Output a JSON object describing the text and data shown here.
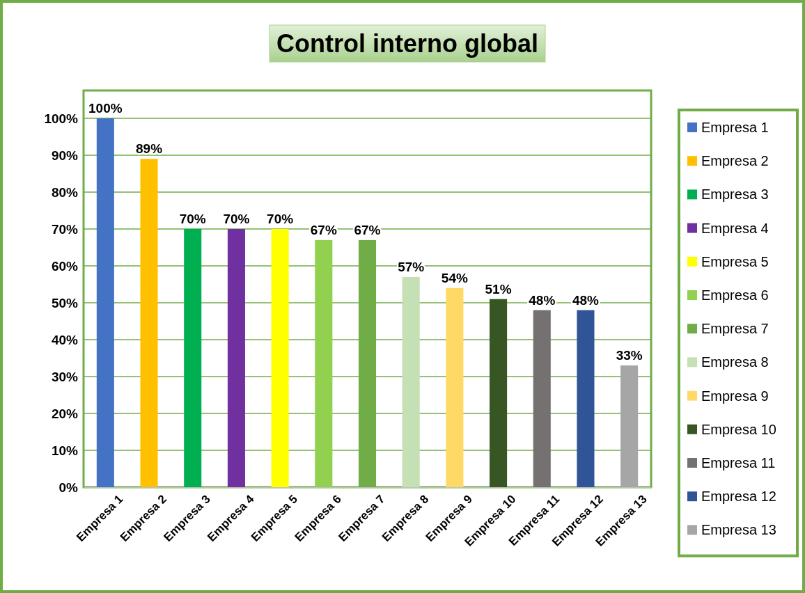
{
  "chart_data": {
    "type": "bar",
    "title": "Control interno global",
    "categories": [
      "Empresa 1",
      "Empresa 2",
      "Empresa 3",
      "Empresa 4",
      "Empresa 5",
      "Empresa 6",
      "Empresa 7",
      "Empresa 8",
      "Empresa 9",
      "Empresa 10",
      "Empresa 11",
      "Empresa 12",
      "Empresa 13"
    ],
    "series": [
      {
        "name": "Empresa 1",
        "color": "#4472c4",
        "values": [
          100,
          null,
          null,
          null,
          null,
          null,
          null,
          null,
          null,
          null,
          null,
          null,
          null
        ],
        "value_labels": [
          "100%",
          null,
          null,
          null,
          null,
          null,
          null,
          null,
          null,
          null,
          null,
          null,
          null
        ]
      },
      {
        "name": "Empresa 2",
        "color": "#ffc000",
        "values": [
          null,
          89,
          null,
          null,
          null,
          null,
          null,
          null,
          null,
          null,
          null,
          null,
          null
        ],
        "value_labels": [
          null,
          "89%",
          null,
          null,
          null,
          null,
          null,
          null,
          null,
          null,
          null,
          null,
          null
        ]
      },
      {
        "name": "Empresa 3",
        "color": "#00b050",
        "values": [
          null,
          null,
          70,
          null,
          null,
          null,
          null,
          null,
          null,
          null,
          null,
          null,
          null
        ],
        "value_labels": [
          null,
          null,
          "70%",
          null,
          null,
          null,
          null,
          null,
          null,
          null,
          null,
          null,
          null
        ]
      },
      {
        "name": "Empresa 4",
        "color": "#7030a0",
        "values": [
          null,
          null,
          null,
          70,
          null,
          null,
          null,
          null,
          null,
          null,
          null,
          null,
          null
        ],
        "value_labels": [
          null,
          null,
          null,
          "70%",
          null,
          null,
          null,
          null,
          null,
          null,
          null,
          null,
          null
        ]
      },
      {
        "name": "Empresa 5",
        "color": "#ffff00",
        "values": [
          null,
          null,
          null,
          null,
          70,
          null,
          null,
          null,
          null,
          null,
          null,
          null,
          null
        ],
        "value_labels": [
          null,
          null,
          null,
          null,
          "70%",
          null,
          null,
          null,
          null,
          null,
          null,
          null,
          null
        ]
      },
      {
        "name": "Empresa 6",
        "color": "#92d050",
        "values": [
          null,
          null,
          null,
          null,
          null,
          67,
          null,
          null,
          null,
          null,
          null,
          null,
          null
        ],
        "value_labels": [
          null,
          null,
          null,
          null,
          null,
          "67%",
          null,
          null,
          null,
          null,
          null,
          null,
          null
        ]
      },
      {
        "name": "Empresa 7",
        "color": "#70ad47",
        "values": [
          null,
          null,
          null,
          null,
          null,
          null,
          67,
          null,
          null,
          null,
          null,
          null,
          null
        ],
        "value_labels": [
          null,
          null,
          null,
          null,
          null,
          null,
          "67%",
          null,
          null,
          null,
          null,
          null,
          null
        ]
      },
      {
        "name": "Empresa 8",
        "color": "#c5e0b4",
        "values": [
          null,
          null,
          null,
          null,
          null,
          null,
          null,
          57,
          null,
          null,
          null,
          null,
          null
        ],
        "value_labels": [
          null,
          null,
          null,
          null,
          null,
          null,
          null,
          "57%",
          null,
          null,
          null,
          null,
          null
        ]
      },
      {
        "name": "Empresa 9",
        "color": "#ffd966",
        "values": [
          null,
          null,
          null,
          null,
          null,
          null,
          null,
          null,
          54,
          null,
          null,
          null,
          null
        ],
        "value_labels": [
          null,
          null,
          null,
          null,
          null,
          null,
          null,
          null,
          "54%",
          null,
          null,
          null,
          null
        ]
      },
      {
        "name": "Empresa 10",
        "color": "#375623",
        "values": [
          null,
          null,
          null,
          null,
          null,
          null,
          null,
          null,
          null,
          51,
          null,
          null,
          null
        ],
        "value_labels": [
          null,
          null,
          null,
          null,
          null,
          null,
          null,
          null,
          null,
          "51%",
          null,
          null,
          null
        ]
      },
      {
        "name": "Empresa 11",
        "color": "#767171",
        "values": [
          null,
          null,
          null,
          null,
          null,
          null,
          null,
          null,
          null,
          null,
          48,
          null,
          null
        ],
        "value_labels": [
          null,
          null,
          null,
          null,
          null,
          null,
          null,
          null,
          null,
          null,
          "48%",
          null,
          null
        ]
      },
      {
        "name": "Empresa 12",
        "color": "#2f5597",
        "values": [
          null,
          null,
          null,
          null,
          null,
          null,
          null,
          null,
          null,
          null,
          null,
          48,
          null
        ],
        "value_labels": [
          null,
          null,
          null,
          null,
          null,
          null,
          null,
          null,
          null,
          null,
          null,
          "48%",
          null
        ]
      },
      {
        "name": "Empresa 13",
        "color": "#a6a6a6",
        "values": [
          null,
          null,
          null,
          null,
          null,
          null,
          null,
          null,
          null,
          null,
          null,
          null,
          33
        ],
        "value_labels": [
          null,
          null,
          null,
          null,
          null,
          null,
          null,
          null,
          null,
          null,
          null,
          null,
          "33%"
        ]
      }
    ],
    "ylim": [
      0,
      100
    ],
    "yticks": [
      {
        "value": 0,
        "label": "0%"
      },
      {
        "value": 10,
        "label": "10%"
      },
      {
        "value": 20,
        "label": "20%"
      },
      {
        "value": 30,
        "label": "30%"
      },
      {
        "value": 40,
        "label": "40%"
      },
      {
        "value": 50,
        "label": "50%"
      },
      {
        "value": 60,
        "label": "60%"
      },
      {
        "value": 70,
        "label": "70%"
      },
      {
        "value": 80,
        "label": "80%"
      },
      {
        "value": 90,
        "label": "90%"
      },
      {
        "value": 100,
        "label": "100%"
      }
    ],
    "grid": "y",
    "legend": "right"
  }
}
